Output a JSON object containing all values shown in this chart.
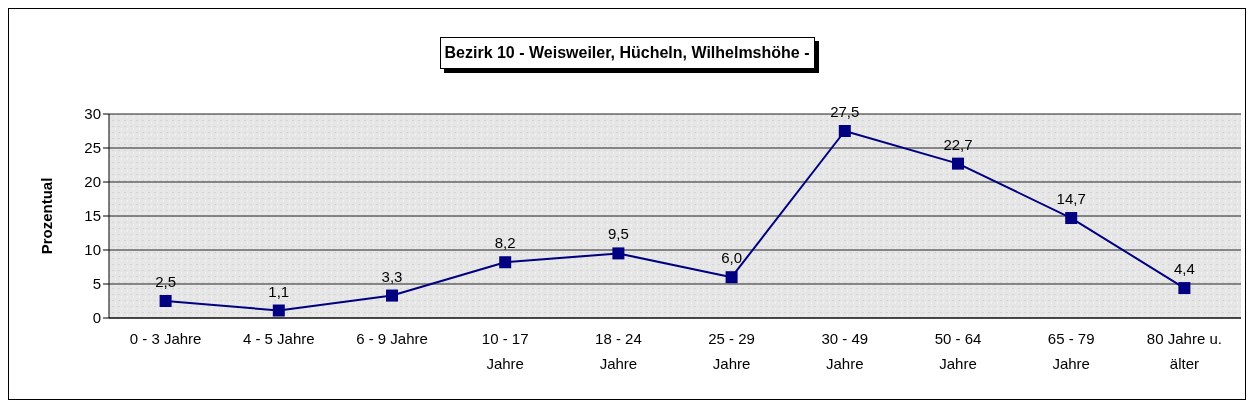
{
  "chart_data": {
    "type": "line",
    "title": "Bezirk 10 - Weisweiler, Hücheln, Wilhelmshöhe -",
    "ylabel": "Prozentual",
    "categories": [
      "0 - 3 Jahre",
      "4 - 5 Jahre",
      "6 - 9 Jahre",
      "10 - 17 Jahre",
      "18 - 24 Jahre",
      "25 - 29 Jahre",
      "30 - 49 Jahre",
      "50 - 64 Jahre",
      "65 - 79 Jahre",
      "80 Jahre u. älter"
    ],
    "series": [
      {
        "color": "#000080",
        "values": [
          2.5,
          1.1,
          3.3,
          8.2,
          9.5,
          6.0,
          27.5,
          22.7,
          14.7,
          4.4
        ],
        "value_labels": [
          "2,5",
          "1,1",
          "3,3",
          "8,2",
          "9,5",
          "6,0",
          "27,5",
          "22,7",
          "14,7",
          "4,4"
        ]
      }
    ],
    "ylim": [
      0,
      30
    ],
    "yticks": [
      0,
      5,
      10,
      15,
      20,
      25,
      30
    ],
    "grid": "y",
    "marker": "square",
    "line_style": "solid",
    "legend": false
  }
}
